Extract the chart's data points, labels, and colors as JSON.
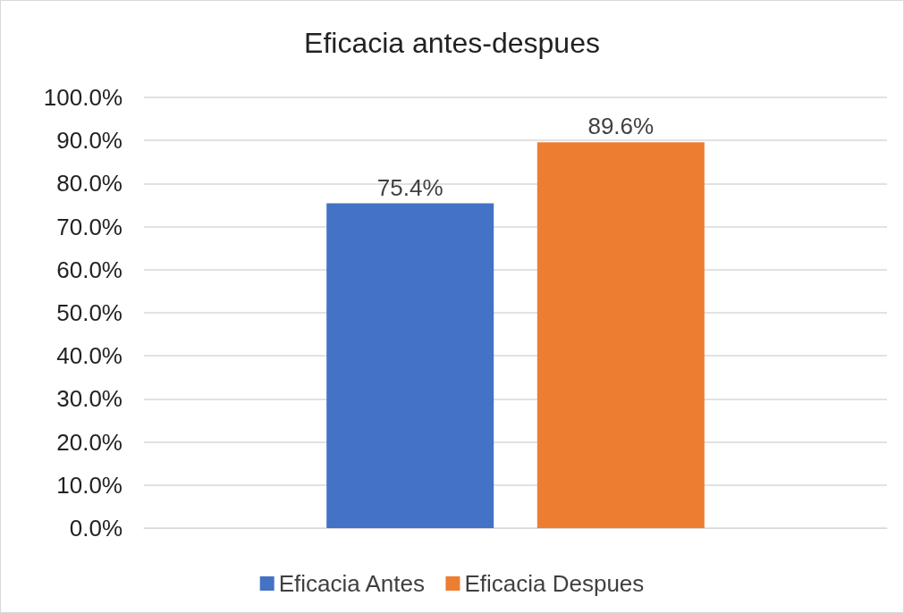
{
  "chart_data": {
    "type": "bar",
    "title": "Eficacia antes-despues",
    "categories": [
      null
    ],
    "series": [
      {
        "name": "Eficacia Antes",
        "color": "#4472c4",
        "values": [
          75.4
        ],
        "value_labels": [
          "75.4%"
        ]
      },
      {
        "name": "Eficacia Despues",
        "color": "#ed7d31",
        "values": [
          89.6
        ],
        "value_labels": [
          "89.6%"
        ]
      }
    ],
    "ylim": [
      0,
      100
    ],
    "yticks": [
      {
        "value": 0,
        "label": "0.0%"
      },
      {
        "value": 10,
        "label": "10.0%"
      },
      {
        "value": 20,
        "label": "20.0%"
      },
      {
        "value": 30,
        "label": "30.0%"
      },
      {
        "value": 40,
        "label": "40.0%"
      },
      {
        "value": 50,
        "label": "50.0%"
      },
      {
        "value": 60,
        "label": "60.0%"
      },
      {
        "value": 70,
        "label": "70.0%"
      },
      {
        "value": 80,
        "label": "80.0%"
      },
      {
        "value": 90,
        "label": "90.0%"
      },
      {
        "value": 100,
        "label": "100.0%"
      }
    ],
    "grid": "y",
    "legend": "bottom"
  }
}
